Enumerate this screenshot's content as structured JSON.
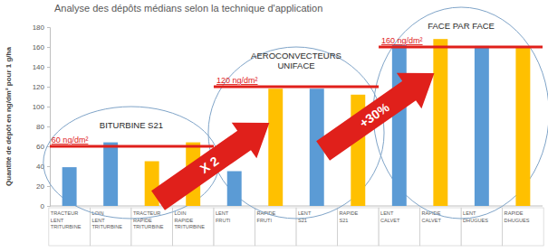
{
  "chart_data": {
    "type": "bar",
    "title": "Analyse des dépôts médians selon la technique d'application",
    "y_label": "Quantité de dépôt en ng/dm² pour 1 g/ha",
    "categories": [
      "TRACTEUR LENT TRITURBINE",
      "LOIN LENT TRITURBINE",
      "TRACTEUR RAPIDE TRITURBINE",
      "LOIN RAPIDE TRITURBINE",
      "LENT FRUTI",
      "RAPIDE FRUTI",
      "LENT S21",
      "RAPIDE S21",
      "LENT CALVET",
      "RAPIDE CALVET",
      "LENT DHUGUES",
      "RAPIDE DHUGUES"
    ],
    "values": [
      39,
      64,
      45,
      64,
      35,
      118,
      118,
      112,
      162,
      168,
      161,
      160
    ],
    "colors": [
      "#5b9bd5",
      "#5b9bd5",
      "#ffc000",
      "#ffc000",
      "#5b9bd5",
      "#ffc000",
      "#5b9bd5",
      "#ffc000",
      "#5b9bd5",
      "#ffc000",
      "#5b9bd5",
      "#ffc000"
    ],
    "ylim": [
      0,
      180
    ],
    "yticks": [
      0,
      20,
      40,
      60,
      80,
      100,
      120,
      140,
      160,
      180
    ],
    "grid": false,
    "groups": [
      {
        "label": "BITURBINE S21",
        "first": 0,
        "last": 3,
        "reference": 60,
        "reference_label": "60 ng/dm²"
      },
      {
        "label": "AEROCONVECTEURS UNIFACE",
        "first": 4,
        "last": 7,
        "reference": 120,
        "reference_label": "120 ng/dm²"
      },
      {
        "label": "FACE PAR FACE",
        "first": 8,
        "last": 11,
        "reference": 160,
        "reference_label": "160 ng/dm²"
      }
    ],
    "arrows": [
      {
        "text": "X 2"
      },
      {
        "text": "+30%"
      }
    ]
  }
}
